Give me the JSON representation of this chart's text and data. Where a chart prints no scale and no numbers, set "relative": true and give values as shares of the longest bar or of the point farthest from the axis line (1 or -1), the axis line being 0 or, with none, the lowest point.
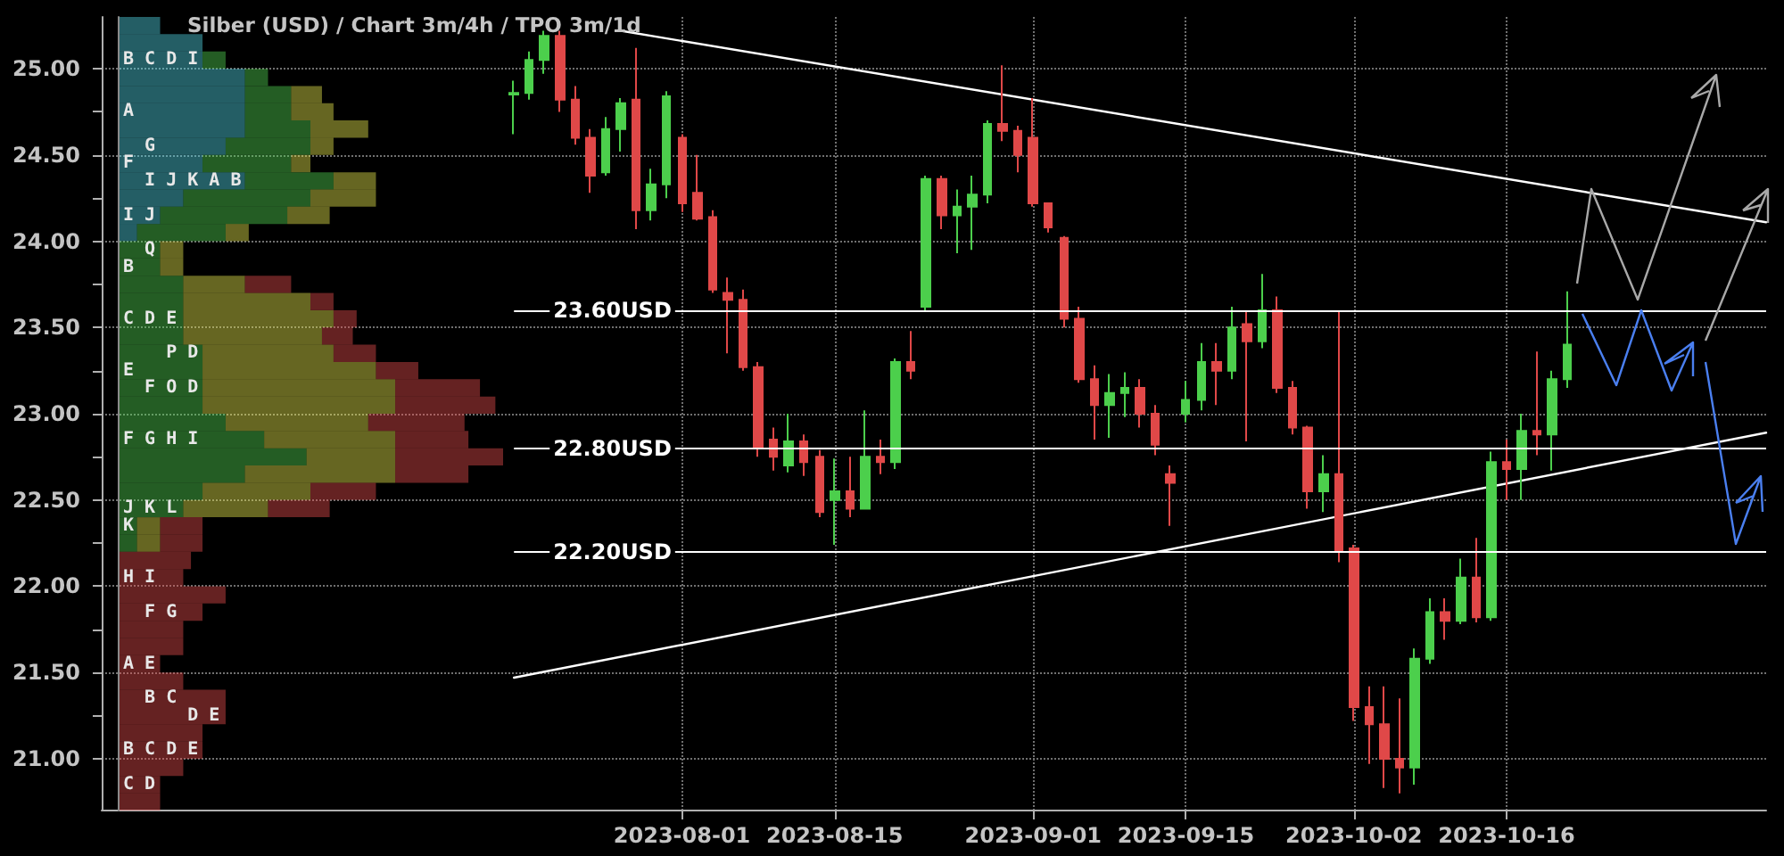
{
  "chart_data": [
    {
      "type": "bar",
      "orientation": "horizontal",
      "stacked": true,
      "relative": true,
      "title": "Silber (USD) / Chart 3m/4h / TPO 3m/1d",
      "categories": [
        null,
        null,
        "B C D I",
        null,
        null,
        "A",
        null,
        "  G",
        "F",
        "  I J K A B",
        null,
        "I J",
        null,
        "  Q",
        "B",
        null,
        null,
        "C D E",
        null,
        "    P D",
        "E",
        "  F O D",
        null,
        null,
        "F G H I",
        null,
        null,
        null,
        "J K L",
        "K",
        null,
        null,
        "H I",
        null,
        "  F G",
        null,
        null,
        "A E",
        null,
        "  B C",
        "      D E",
        null,
        "B C D E",
        null,
        "C D",
        null
      ],
      "series": [
        {
          "color": "#55e0f0",
          "values": [
            0.11,
            0.22,
            0.22,
            0.33,
            0.33,
            0.33,
            0.33,
            0.28,
            0.22,
            0.33,
            0.17,
            0.11,
            0.05,
            0,
            0,
            0,
            0,
            0,
            0,
            0,
            0,
            0,
            0,
            0,
            0,
            0,
            0,
            0,
            0,
            0,
            0,
            0,
            0,
            0,
            0,
            0,
            0,
            0,
            0,
            0,
            0,
            0,
            0,
            0,
            0,
            0
          ]
        },
        {
          "color": "#55dd55",
          "values": [
            0,
            0,
            0.06,
            0.06,
            0.12,
            0.12,
            0.17,
            0.22,
            0.23,
            0.23,
            0.33,
            0.33,
            0.23,
            0.11,
            0.11,
            0.17,
            0.17,
            0.17,
            0.17,
            0.22,
            0.22,
            0.22,
            0.22,
            0.28,
            0.38,
            0.49,
            0.33,
            0.22,
            0.17,
            0.05,
            0.05,
            0,
            0,
            0,
            0,
            0,
            0,
            0,
            0,
            0,
            0,
            0,
            0,
            0,
            0,
            0
          ]
        },
        {
          "color": "#f2f250",
          "values": [
            0,
            0,
            0,
            0,
            0.08,
            0.11,
            0.15,
            0.06,
            0.05,
            0.11,
            0.17,
            0.11,
            0.06,
            0.06,
            0.06,
            0.16,
            0.33,
            0.39,
            0.36,
            0.34,
            0.45,
            0.5,
            0.5,
            0.37,
            0.34,
            0.23,
            0.39,
            0.28,
            0.22,
            0.06,
            0.06,
            0,
            0,
            0,
            0,
            0,
            0,
            0,
            0,
            0,
            0,
            0,
            0,
            0,
            0,
            0
          ]
        },
        {
          "color": "#f05252",
          "values": [
            0,
            0,
            0,
            0,
            0,
            0,
            0,
            0,
            0,
            0,
            0,
            0,
            0,
            0,
            0,
            0.12,
            0.06,
            0.06,
            0.08,
            0.11,
            0.11,
            0.22,
            0.26,
            0.25,
            0.19,
            0.28,
            0.19,
            0.17,
            0.16,
            0.11,
            0.11,
            0.19,
            0.17,
            0.28,
            0.22,
            0.17,
            0.17,
            0.11,
            0.17,
            0.28,
            0.28,
            0.22,
            0.22,
            0.17,
            0.11,
            0.11
          ]
        }
      ]
    },
    {
      "type": "candlestick",
      "categories": [
        null,
        null,
        null,
        null,
        null,
        null,
        null,
        null,
        null,
        null,
        null,
        null,
        null,
        null,
        null,
        null,
        null,
        null,
        null,
        null,
        null,
        null,
        null,
        null,
        null,
        null,
        null,
        null,
        null,
        null,
        null,
        null,
        null,
        null,
        null,
        null,
        null,
        null,
        "2023-08-01",
        null,
        null,
        null,
        null,
        null,
        null,
        null,
        null,
        null,
        "2023-08-15",
        null,
        null,
        null,
        null,
        null,
        null,
        null,
        null,
        null,
        null,
        null,
        null,
        "2023-09-01",
        null,
        null,
        null,
        null,
        null,
        null,
        null,
        null,
        null,
        "2023-09-15",
        null,
        null,
        null,
        null,
        null,
        null,
        null,
        null,
        null,
        null,
        "2023-10-02",
        null,
        null,
        null,
        null,
        null,
        null,
        null,
        null,
        null,
        "2023-10-16",
        null,
        null,
        null,
        null,
        null,
        null,
        null,
        null,
        null,
        null,
        null,
        null,
        null,
        null,
        null,
        null,
        null
      ],
      "ohlc": [
        null,
        null,
        null,
        null,
        null,
        null,
        null,
        null,
        null,
        null,
        null,
        null,
        null,
        null,
        null,
        null,
        null,
        null,
        null,
        null,
        null,
        null,
        null,
        null,
        null,
        null,
        null,
        [
          24.85,
          24.93,
          24.62,
          24.86
        ],
        [
          24.86,
          25.1,
          24.82,
          25.05
        ],
        [
          25.05,
          25.22,
          24.97,
          25.19
        ],
        [
          25.19,
          25.22,
          24.75,
          24.82
        ],
        [
          24.82,
          24.9,
          24.56,
          24.6
        ],
        [
          24.6,
          24.65,
          24.28,
          24.38
        ],
        [
          24.4,
          24.72,
          24.38,
          24.65
        ],
        [
          24.65,
          24.83,
          24.52,
          24.8
        ],
        [
          24.82,
          25.12,
          24.07,
          24.18
        ],
        [
          24.18,
          24.42,
          24.12,
          24.33
        ],
        [
          24.33,
          24.87,
          24.25,
          24.84
        ],
        [
          24.6,
          24.62,
          24.17,
          24.22
        ],
        [
          24.28,
          24.5,
          24.12,
          24.13
        ],
        [
          24.14,
          24.18,
          23.7,
          23.72
        ],
        [
          23.7,
          23.79,
          23.35,
          23.66
        ],
        [
          23.66,
          23.72,
          23.25,
          23.27
        ],
        [
          23.27,
          23.3,
          22.75,
          22.8
        ],
        [
          22.85,
          22.92,
          22.67,
          22.75
        ],
        [
          22.7,
          23,
          22.66,
          22.84
        ],
        [
          22.84,
          22.88,
          22.64,
          22.72
        ],
        [
          22.75,
          22.79,
          22.4,
          22.43
        ],
        [
          22.5,
          22.74,
          22.24,
          22.55
        ],
        [
          22.55,
          22.75,
          22.4,
          22.45
        ],
        [
          22.45,
          23.02,
          22.45,
          22.75
        ],
        [
          22.75,
          22.85,
          22.65,
          22.72
        ],
        [
          22.72,
          23.32,
          22.68,
          23.3
        ],
        [
          23.3,
          23.48,
          23.2,
          23.25
        ],
        [
          23.62,
          24.38,
          23.6,
          24.36
        ],
        [
          24.36,
          24.38,
          24.07,
          24.15
        ],
        [
          24.15,
          24.3,
          23.93,
          24.2
        ],
        [
          24.2,
          24.38,
          23.95,
          24.27
        ],
        [
          24.27,
          24.7,
          24.22,
          24.68
        ],
        [
          24.68,
          25.02,
          24.58,
          24.64
        ],
        [
          24.64,
          24.67,
          24.4,
          24.5
        ],
        [
          24.6,
          24.83,
          24.2,
          24.22
        ],
        [
          24.22,
          24.22,
          24.05,
          24.08
        ],
        [
          24.02,
          24.03,
          23.5,
          23.55
        ],
        [
          23.55,
          23.62,
          23.18,
          23.2
        ],
        [
          23.2,
          23.28,
          22.85,
          23.05
        ],
        [
          23.05,
          23.23,
          22.86,
          23.12
        ],
        [
          23.12,
          23.24,
          22.98,
          23.15
        ],
        [
          23.15,
          23.2,
          22.92,
          23
        ],
        [
          23,
          23.05,
          22.76,
          22.82
        ],
        [
          22.65,
          22.7,
          22.35,
          22.6
        ],
        [
          23,
          23.19,
          22.95,
          23.08
        ],
        [
          23.08,
          23.41,
          23.02,
          23.3
        ],
        [
          23.3,
          23.41,
          23.05,
          23.25
        ],
        [
          23.25,
          23.62,
          23.2,
          23.5
        ],
        [
          23.52,
          23.6,
          22.84,
          23.42
        ],
        [
          23.42,
          23.81,
          23.38,
          23.6
        ],
        [
          23.6,
          23.68,
          23.12,
          23.15
        ],
        [
          23.15,
          23.19,
          22.88,
          22.92
        ],
        [
          22.92,
          22.93,
          22.45,
          22.55
        ],
        [
          22.55,
          22.76,
          22.43,
          22.65
        ],
        [
          22.65,
          23.59,
          22.14,
          22.2
        ],
        [
          22.22,
          22.24,
          21.22,
          21.3
        ],
        [
          21.3,
          21.42,
          20.97,
          21.2
        ],
        [
          21.2,
          21.42,
          20.83,
          21
        ],
        [
          21,
          21.35,
          20.8,
          20.95
        ],
        [
          20.95,
          21.64,
          20.85,
          21.58
        ],
        [
          21.58,
          21.93,
          21.55,
          21.85
        ],
        [
          21.85,
          21.93,
          21.69,
          21.8
        ],
        [
          21.8,
          22.16,
          21.78,
          22.05
        ],
        [
          22.05,
          22.28,
          21.79,
          21.82
        ],
        [
          21.82,
          22.78,
          21.8,
          22.72
        ],
        [
          22.72,
          22.85,
          22.5,
          22.68
        ],
        [
          22.68,
          23,
          22.5,
          22.9
        ],
        [
          22.9,
          23.36,
          22.76,
          22.88
        ],
        [
          22.88,
          23.25,
          22.67,
          23.2
        ],
        [
          23.2,
          23.71,
          23.15,
          23.4
        ],
        null,
        null,
        null,
        null,
        null,
        null,
        null,
        null,
        null,
        null,
        null,
        null,
        null
      ],
      "ylim": [
        20.7,
        25.3
      ],
      "yticks": [
        {
          "value": 21,
          "label": "21.00"
        },
        {
          "value": 21.25,
          "label": null
        },
        {
          "value": 21.5,
          "label": "21.50"
        },
        {
          "value": 21.75,
          "label": null
        },
        {
          "value": 22,
          "label": "22.00"
        },
        {
          "value": 22.25,
          "label": null
        },
        {
          "value": 22.5,
          "label": "22.50"
        },
        {
          "value": 22.75,
          "label": null
        },
        {
          "value": 23,
          "label": "23.00"
        },
        {
          "value": 23.25,
          "label": null
        },
        {
          "value": 23.5,
          "label": "23.50"
        },
        {
          "value": 23.75,
          "label": null
        },
        {
          "value": 24,
          "label": "24.00"
        },
        {
          "value": 24.25,
          "label": null
        },
        {
          "value": 24.5,
          "label": "24.50"
        },
        {
          "value": 24.75,
          "label": null
        },
        {
          "value": 25,
          "label": "25.00"
        }
      ],
      "grid": true,
      "ref_lines": [
        {
          "axis": "y",
          "value": 23.6,
          "label": "23.60USD",
          "color": "#ffffff"
        },
        {
          "axis": "y",
          "value": 22.8,
          "label": "22.80USD",
          "color": "#ffffff"
        },
        {
          "axis": "y",
          "value": 22.2,
          "label": "22.20USD",
          "color": "#ffffff"
        }
      ],
      "series": [
        {
          "type": "line",
          "color": "#ffffff",
          "values": [
            null,
            null,
            null,
            null,
            null,
            null,
            null,
            null,
            null,
            null,
            null,
            null,
            null,
            null,
            null,
            null,
            null,
            null,
            null,
            null,
            null,
            null,
            null,
            null,
            null,
            null,
            null,
            21.47,
            null,
            null,
            null,
            null,
            null,
            null,
            null,
            null,
            null,
            null,
            null,
            null,
            null,
            null,
            null,
            null,
            null,
            null,
            null,
            null,
            null,
            null,
            null,
            null,
            null,
            null,
            null,
            null,
            null,
            null,
            null,
            null,
            null,
            null,
            null,
            null,
            null,
            null,
            null,
            null,
            null,
            null,
            null,
            null,
            null,
            null,
            null,
            null,
            null,
            null,
            null,
            null,
            null,
            null,
            null,
            null,
            null,
            null,
            null,
            null,
            null,
            null,
            null,
            null,
            null,
            null,
            null,
            null,
            null,
            null,
            null,
            null,
            null,
            null,
            null,
            null,
            null,
            null,
            null,
            null,
            null,
            22.89
          ]
        },
        {
          "type": "line",
          "color": "#ffffff",
          "values": [
            null,
            null,
            null,
            null,
            null,
            null,
            null,
            null,
            null,
            null,
            null,
            null,
            null,
            null,
            null,
            null,
            null,
            null,
            null,
            null,
            null,
            null,
            null,
            null,
            null,
            null,
            null,
            null,
            null,
            null,
            null,
            null,
            null,
            null,
            25.22,
            null,
            null,
            null,
            null,
            null,
            null,
            null,
            null,
            null,
            null,
            null,
            null,
            null,
            null,
            null,
            null,
            null,
            null,
            null,
            null,
            null,
            null,
            null,
            null,
            null,
            null,
            null,
            null,
            null,
            null,
            null,
            null,
            null,
            null,
            null,
            null,
            null,
            null,
            null,
            null,
            null,
            null,
            null,
            null,
            null,
            null,
            null,
            null,
            null,
            null,
            null,
            null,
            null,
            null,
            null,
            null,
            null,
            null,
            null,
            null,
            null,
            null,
            null,
            null,
            null,
            null,
            null,
            null,
            null,
            null,
            null,
            null,
            null,
            null,
            24.11
          ]
        }
      ]
    }
  ]
}
